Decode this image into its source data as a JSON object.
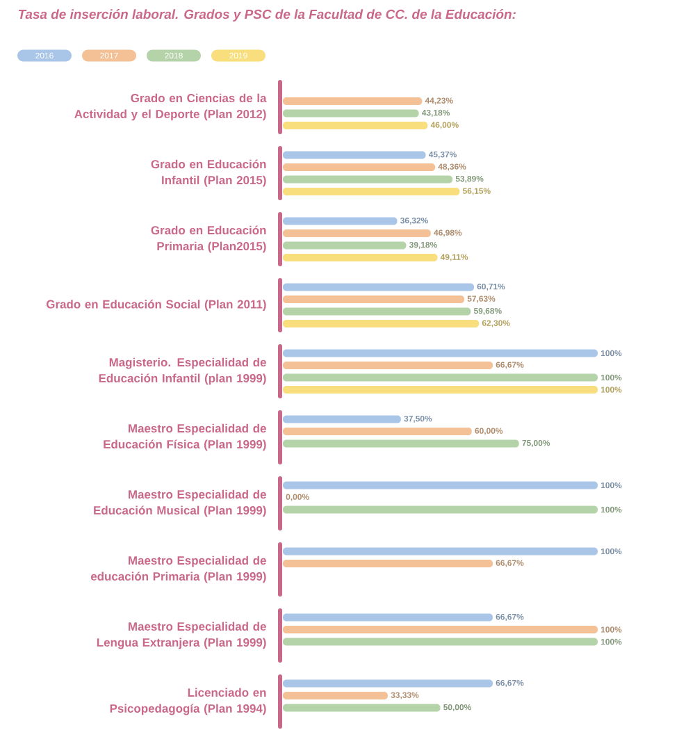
{
  "chart_data": {
    "type": "bar",
    "orientation": "horizontal",
    "title": "Tasa de inserción laboral. Grados y PSC de la Facultad de CC. de la Educación:",
    "categories": [
      "Grado en Ciencias de la Actividad y el Deporte (Plan 2012)",
      "Grado en Educación Infantil (Plan 2015)",
      "Grado en Educación Primaria (Plan2015)",
      "Grado en Educación Social (Plan 2011)",
      "Magisterio. Especialidad de Educación Infantil (plan 1999)",
      "Maestro Especialidad de Educación Física (Plan 1999)",
      "Maestro Especialidad de Educación Musical (Plan 1999)",
      "Maestro Especialidad de educación Primaria (Plan 1999)",
      "Maestro Especialidad de Lengua Extranjera (Plan 1999)",
      "Licenciado en Psicopedagogía (Plan 1994)"
    ],
    "series": [
      {
        "name": "2016",
        "color": "#a9c6e8",
        "values": [
          null,
          45.37,
          36.32,
          60.71,
          100,
          37.5,
          100,
          100,
          66.67,
          66.67
        ],
        "value_labels": [
          null,
          "45,37%",
          "36,32%",
          "60,71%",
          "100%",
          "37,50%",
          "100%",
          "100%",
          "66,67%",
          "66,67%"
        ]
      },
      {
        "name": "2017",
        "color": "#f3c195",
        "values": [
          44.23,
          48.36,
          46.98,
          57.63,
          66.67,
          60,
          0,
          66.67,
          100,
          33.33
        ],
        "value_labels": [
          "44,23%",
          "48,36%",
          "46,98%",
          "57,63%",
          "66,67%",
          "60,00%",
          "0,00%",
          "66,67%",
          "100%",
          "33,33%"
        ]
      },
      {
        "name": "2018",
        "color": "#b5d3a8",
        "values": [
          43.18,
          53.89,
          39.18,
          59.68,
          100,
          75,
          100,
          null,
          100,
          50
        ],
        "value_labels": [
          "43,18%",
          "53,89%",
          "39,18%",
          "59,68%",
          "100%",
          "75,00%",
          "100%",
          null,
          "100%",
          "50,00%"
        ]
      },
      {
        "name": "2019",
        "color": "#f8de7d",
        "values": [
          46,
          56.15,
          49.11,
          62.3,
          100,
          null,
          null,
          null,
          null,
          null
        ],
        "value_labels": [
          "46,00%",
          "56,15%",
          "49,11%",
          "62,30%",
          "100%",
          null,
          null,
          null,
          null,
          null
        ]
      }
    ],
    "xlim": [
      0,
      100
    ],
    "legend": "top left"
  }
}
